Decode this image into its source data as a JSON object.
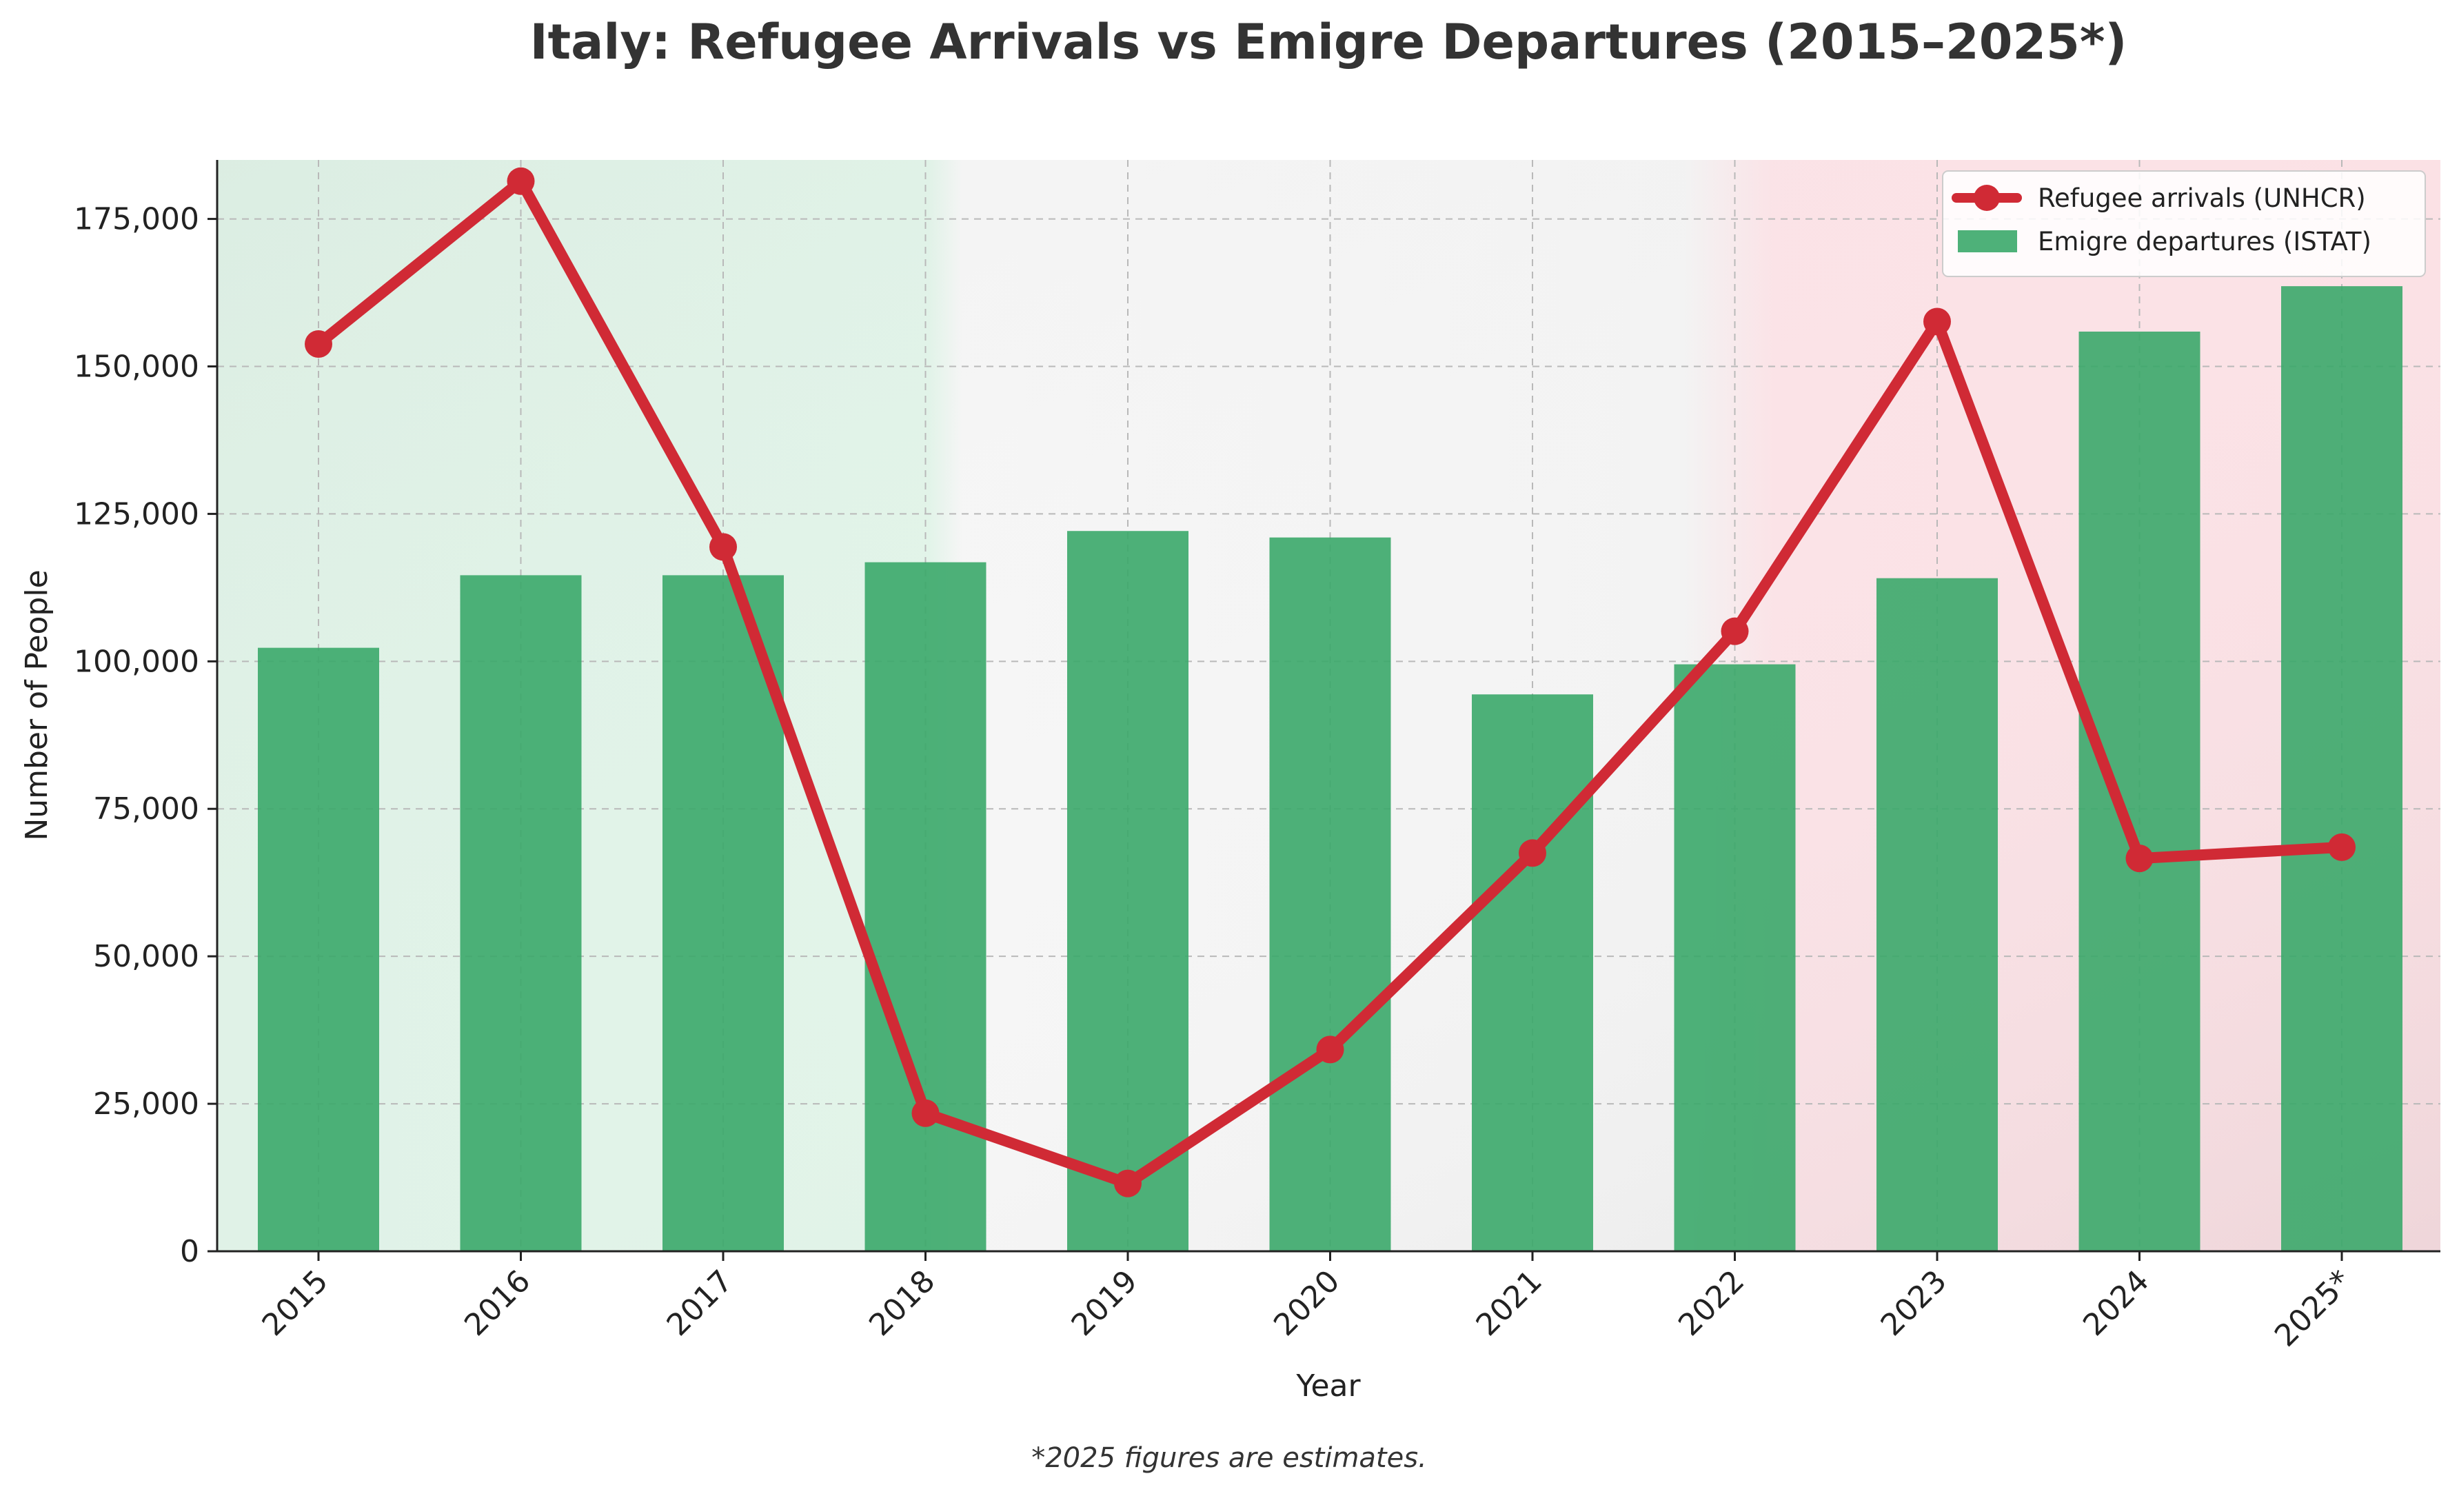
{
  "chart_data": {
    "type": "bar",
    "title": "Italy: Refugee Arrivals vs Emigre Departures (2015–2025*)",
    "xlabel": "Year",
    "ylabel": "Number of People",
    "ylim": [
      0,
      185000
    ],
    "yticks": [
      0,
      25000,
      50000,
      75000,
      100000,
      125000,
      150000,
      175000
    ],
    "ytick_labels": [
      "0",
      "25,000",
      "50,000",
      "75,000",
      "100,000",
      "125,000",
      "150,000",
      "175,000"
    ],
    "grid": true,
    "legend_position": "top-right",
    "categories": [
      "2015",
      "2016",
      "2017",
      "2018",
      "2019",
      "2020",
      "2021",
      "2022",
      "2023",
      "2024",
      "2025*"
    ],
    "series": [
      {
        "name": "Refugee arrivals (UNHCR)",
        "type": "line",
        "color": "#d02a35",
        "values": [
          153800,
          181400,
          119400,
          23400,
          11500,
          34200,
          67500,
          105100,
          157600,
          66600,
          68500
        ]
      },
      {
        "name": "Emigre departures (ISTAT)",
        "type": "bar",
        "color": "#3ba86a",
        "values": [
          102300,
          114600,
          114600,
          116800,
          122100,
          121000,
          94400,
          99500,
          114100,
          155900,
          163600
        ]
      }
    ],
    "background": {
      "colors": [
        "#dcf2e4",
        "#f2f2f2",
        "#fbdfe3"
      ],
      "description": "Italian flag tricolor"
    },
    "footnote": "*2025 figures are estimates."
  }
}
